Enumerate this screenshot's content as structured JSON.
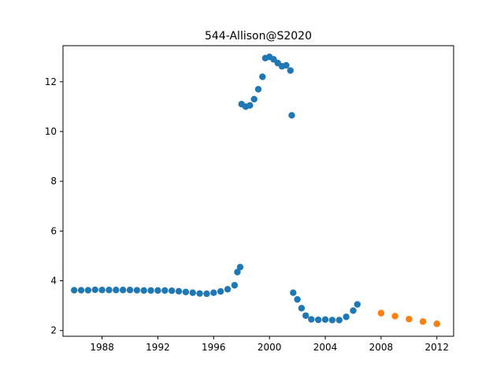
{
  "chart_data": {
    "type": "scatter",
    "title": "544-Allison@S2020",
    "xlabel": "",
    "ylabel": "",
    "xlim": [
      1985.2,
      2013.2
    ],
    "ylim": [
      1.77,
      13.45
    ],
    "x_ticks": [
      1988,
      1992,
      1996,
      2000,
      2004,
      2008,
      2012
    ],
    "x_tick_labels": [
      "1988",
      "1992",
      "1996",
      "2000",
      "2004",
      "2008",
      "2012"
    ],
    "y_ticks": [
      2,
      4,
      6,
      8,
      10,
      12
    ],
    "y_tick_labels": [
      "2",
      "4",
      "6",
      "8",
      "10",
      "12"
    ],
    "grid": false,
    "series": [
      {
        "color": "#1f77b4",
        "points": [
          [
            1986.0,
            3.62
          ],
          [
            1986.5,
            3.62
          ],
          [
            1987.0,
            3.62
          ],
          [
            1987.5,
            3.64
          ],
          [
            1988.0,
            3.63
          ],
          [
            1988.5,
            3.63
          ],
          [
            1989.0,
            3.63
          ],
          [
            1989.5,
            3.63
          ],
          [
            1990.0,
            3.63
          ],
          [
            1990.5,
            3.62
          ],
          [
            1991.0,
            3.61
          ],
          [
            1991.5,
            3.61
          ],
          [
            1992.0,
            3.61
          ],
          [
            1992.5,
            3.61
          ],
          [
            1993.0,
            3.6
          ],
          [
            1993.5,
            3.58
          ],
          [
            1994.0,
            3.55
          ],
          [
            1994.5,
            3.52
          ],
          [
            1995.0,
            3.49
          ],
          [
            1995.5,
            3.48
          ],
          [
            1996.0,
            3.52
          ],
          [
            1996.5,
            3.57
          ],
          [
            1997.0,
            3.66
          ],
          [
            1997.5,
            3.82
          ],
          [
            1997.7,
            4.35
          ],
          [
            1997.9,
            4.55
          ],
          [
            1998.0,
            11.1
          ],
          [
            1998.3,
            11.0
          ],
          [
            1998.6,
            11.05
          ],
          [
            1998.9,
            11.3
          ],
          [
            1999.2,
            11.7
          ],
          [
            1999.5,
            12.2
          ],
          [
            1999.7,
            12.95
          ],
          [
            2000.0,
            13.0
          ],
          [
            2000.3,
            12.9
          ],
          [
            2000.6,
            12.75
          ],
          [
            2000.9,
            12.62
          ],
          [
            2001.2,
            12.66
          ],
          [
            2001.5,
            12.45
          ],
          [
            2001.6,
            10.65
          ],
          [
            2001.7,
            3.52
          ],
          [
            2002.0,
            3.25
          ],
          [
            2002.3,
            2.9
          ],
          [
            2002.6,
            2.6
          ],
          [
            2003.0,
            2.45
          ],
          [
            2003.5,
            2.43
          ],
          [
            2004.0,
            2.44
          ],
          [
            2004.5,
            2.42
          ],
          [
            2005.0,
            2.42
          ],
          [
            2005.5,
            2.55
          ],
          [
            2006.0,
            2.8
          ],
          [
            2006.3,
            3.05
          ]
        ]
      },
      {
        "color": "#ff7f0e",
        "points": [
          [
            2008.0,
            2.7
          ],
          [
            2009.0,
            2.58
          ],
          [
            2010.0,
            2.46
          ],
          [
            2011.0,
            2.36
          ],
          [
            2012.0,
            2.27
          ]
        ]
      }
    ]
  }
}
